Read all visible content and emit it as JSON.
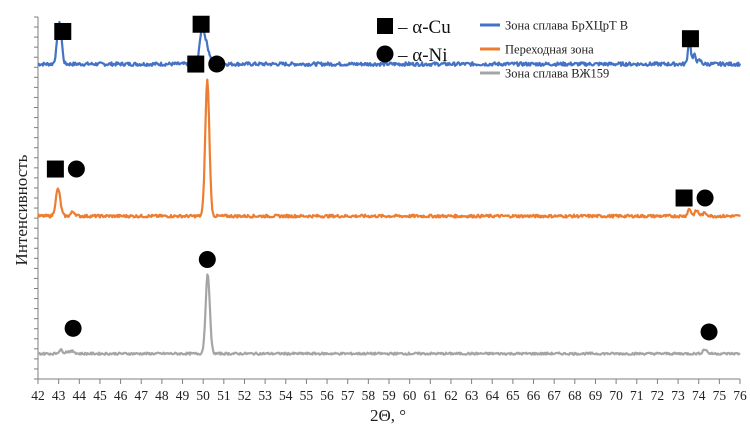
{
  "chart_data": {
    "type": "line",
    "title": "",
    "xlabel": "2Θ, °",
    "ylabel": "Интенсивность",
    "xlim": [
      42,
      76
    ],
    "x_ticks": [
      42,
      43,
      44,
      45,
      46,
      47,
      48,
      49,
      50,
      51,
      52,
      53,
      54,
      55,
      56,
      57,
      58,
      59,
      60,
      61,
      62,
      63,
      64,
      65,
      66,
      67,
      68,
      69,
      70,
      71,
      72,
      73,
      74,
      75,
      76
    ],
    "ylim": [
      0,
      100
    ],
    "y_tick_labels": false,
    "grid": false,
    "legend_position": "top-right",
    "phase_legend": [
      {
        "symbol": "square",
        "label": "– α-Cu"
      },
      {
        "symbol": "circle",
        "label": "– α-Ni"
      }
    ],
    "series": [
      {
        "name": "Зона сплава БрХЦрТ В",
        "color": "#4472C4",
        "baseline": 87,
        "noise": 0.5,
        "peaks": [
          {
            "x": 43.0,
            "h": 8,
            "w": 0.1
          },
          {
            "x": 43.1,
            "h": 5,
            "w": 0.08
          },
          {
            "x": 49.93,
            "h": 9,
            "w": 0.1
          },
          {
            "x": 50.12,
            "h": 5.5,
            "w": 0.1
          },
          {
            "x": 50.3,
            "h": 2,
            "w": 0.08
          },
          {
            "x": 73.55,
            "h": 6.5,
            "w": 0.07
          },
          {
            "x": 73.8,
            "h": 2.5,
            "w": 0.07
          },
          {
            "x": 74.05,
            "h": 1,
            "w": 0.08
          }
        ],
        "markers": [
          {
            "x": 43.2,
            "y": 96,
            "shapes": [
              "square"
            ]
          },
          {
            "x": 49.9,
            "y": 98,
            "shapes": [
              "square"
            ]
          },
          {
            "x": 73.6,
            "y": 94,
            "shapes": [
              "square"
            ]
          }
        ]
      },
      {
        "name": "Переходная зона",
        "color": "#ED7D31",
        "baseline": 45,
        "noise": 0.4,
        "peaks": [
          {
            "x": 42.97,
            "h": 7.5,
            "w": 0.11
          },
          {
            "x": 43.7,
            "h": 1.2,
            "w": 0.1
          },
          {
            "x": 50.2,
            "h": 37.5,
            "w": 0.1
          },
          {
            "x": 73.55,
            "h": 2,
            "w": 0.08
          },
          {
            "x": 73.9,
            "h": 1.5,
            "w": 0.09
          },
          {
            "x": 74.3,
            "h": 0.8,
            "w": 0.12
          }
        ],
        "markers": [
          {
            "x": 43.35,
            "y": 58,
            "shapes": [
              "square",
              "circle"
            ]
          },
          {
            "x": 50.15,
            "y": 87,
            "shapes": [
              "square",
              "circle"
            ]
          },
          {
            "x": 73.8,
            "y": 50,
            "shapes": [
              "square",
              "circle"
            ]
          }
        ]
      },
      {
        "name": "Зона сплава ВЖ159",
        "color": "#A5A5A5",
        "baseline": 7,
        "noise": 0.3,
        "peaks": [
          {
            "x": 43.1,
            "h": 1,
            "w": 0.1
          },
          {
            "x": 43.45,
            "h": 0.6,
            "w": 0.1
          },
          {
            "x": 43.7,
            "h": 0.6,
            "w": 0.1
          },
          {
            "x": 50.22,
            "h": 22,
            "w": 0.1
          },
          {
            "x": 74.3,
            "h": 1.2,
            "w": 0.1
          }
        ],
        "markers": [
          {
            "x": 43.7,
            "y": 14,
            "shapes": [
              "circle"
            ]
          },
          {
            "x": 50.2,
            "y": 33,
            "shapes": [
              "circle"
            ]
          },
          {
            "x": 74.5,
            "y": 13,
            "shapes": [
              "circle"
            ]
          }
        ]
      }
    ]
  }
}
